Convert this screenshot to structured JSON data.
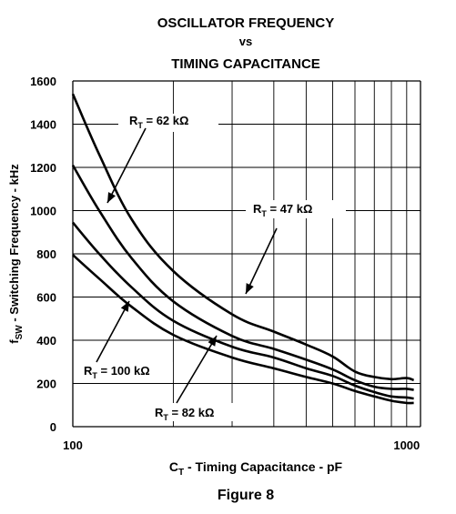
{
  "titles": {
    "line1": "OSCILLATOR FREQUENCY",
    "line2": "vs",
    "line3": "TIMING CAPACITANCE"
  },
  "caption": "Figure 8",
  "chart_data": {
    "type": "line",
    "title": "OSCILLATOR FREQUENCY vs TIMING CAPACITANCE",
    "xlabel": "C_T - Timing Capacitance - pF",
    "ylabel": "f_SW - Switching Frequency - kHz",
    "xscale": "log",
    "xlim": [
      100,
      1100
    ],
    "ylim": [
      0,
      1600
    ],
    "xticks": [
      100,
      1000
    ],
    "yticks": [
      0,
      200,
      400,
      600,
      800,
      1000,
      1200,
      1400,
      1600
    ],
    "grid": true,
    "series": [
      {
        "name": "RT = 62 kΩ",
        "label_main": "R",
        "label_sub": "T",
        "label_rest": " = 62 kΩ",
        "x": [
          100,
          120,
          150,
          200,
          300,
          400,
          500,
          600,
          700,
          800,
          900,
          1000,
          1050
        ],
        "y": [
          1540,
          1260,
          960,
          720,
          520,
          440,
          380,
          325,
          255,
          230,
          220,
          225,
          215
        ]
      },
      {
        "name": "RT = 47 kΩ",
        "label_main": "R",
        "label_sub": "T",
        "label_rest": " = 47 kΩ",
        "x": [
          100,
          120,
          150,
          200,
          300,
          400,
          500,
          600,
          700,
          800,
          900,
          1000,
          1050
        ],
        "y": [
          1210,
          1000,
          780,
          580,
          420,
          360,
          310,
          265,
          215,
          185,
          175,
          175,
          170
        ]
      },
      {
        "name": "RT = 82 kΩ",
        "label_main": "R",
        "label_sub": "T",
        "label_rest": " = 82 kΩ",
        "x": [
          100,
          120,
          150,
          200,
          300,
          400,
          500,
          600,
          700,
          800,
          900,
          1000,
          1050
        ],
        "y": [
          945,
          800,
          645,
          490,
          370,
          320,
          270,
          235,
          190,
          160,
          140,
          135,
          130
        ]
      },
      {
        "name": "RT = 100 kΩ",
        "label_main": "R",
        "label_sub": "T",
        "label_rest": " = 100 kΩ",
        "x": [
          100,
          120,
          150,
          200,
          300,
          400,
          500,
          600,
          700,
          800,
          900,
          1000,
          1050
        ],
        "y": [
          795,
          685,
          555,
          425,
          320,
          270,
          230,
          200,
          165,
          140,
          120,
          110,
          110
        ]
      }
    ]
  }
}
